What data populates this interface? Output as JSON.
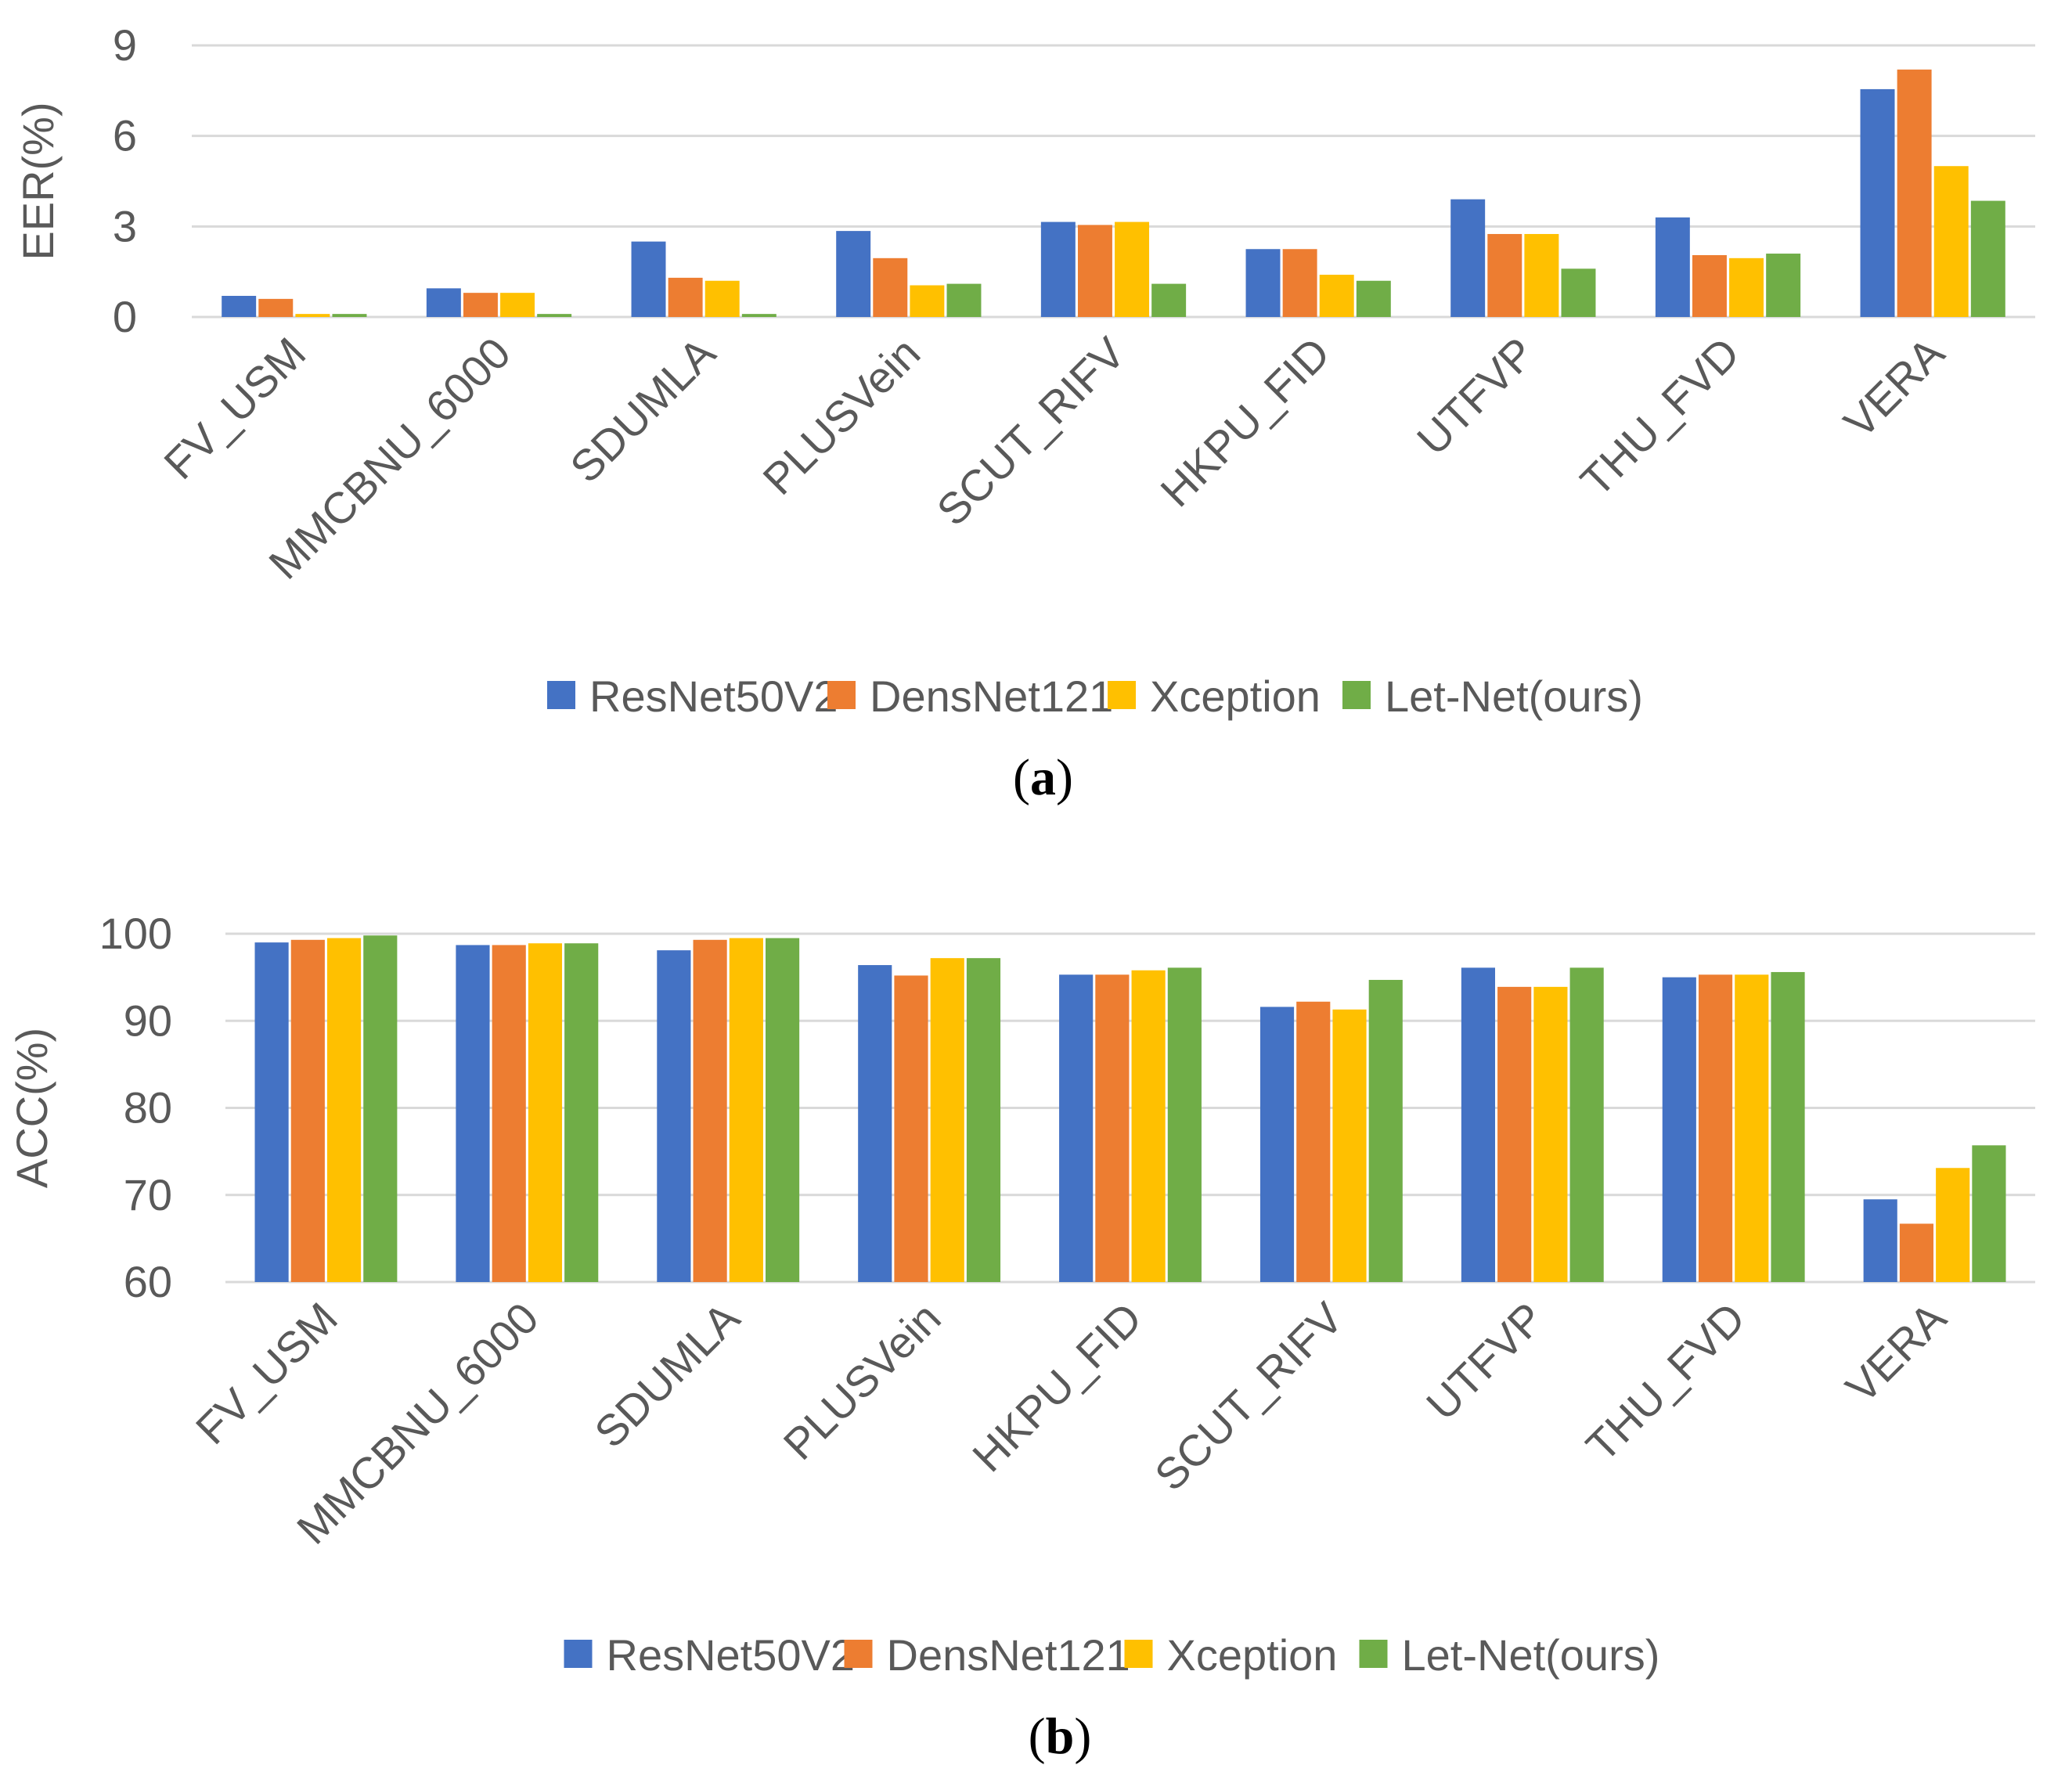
{
  "chart_data": [
    {
      "type": "bar",
      "id": "a",
      "caption_paren_open": "(",
      "caption_letter": "a",
      "caption_paren_close": ")",
      "ylabel": "EER(%)",
      "ylim": [
        0,
        9
      ],
      "yticks": [
        "0",
        "3",
        "6",
        "9"
      ],
      "categories": [
        "FV_USM",
        "MMCBNU_6000",
        "SDUMLA",
        "PLUSVein",
        "SCUT_RIFV",
        "HKPU_FID",
        "UTFVP",
        "THU_FVD",
        "VERA"
      ],
      "series": [
        {
          "name": "ResNet50V2",
          "values": [
            0.7,
            0.95,
            2.5,
            2.85,
            3.15,
            2.25,
            3.9,
            3.3,
            7.55
          ]
        },
        {
          "name": "DensNet121",
          "values": [
            0.6,
            0.8,
            1.3,
            1.95,
            3.05,
            2.25,
            2.75,
            2.05,
            8.2
          ]
        },
        {
          "name": "Xception",
          "values": [
            0.1,
            0.8,
            1.2,
            1.05,
            3.15,
            1.4,
            2.75,
            1.95,
            5.0
          ]
        },
        {
          "name": "Let-Net(ours)",
          "values": [
            0.1,
            0.1,
            0.1,
            1.1,
            1.1,
            1.2,
            1.6,
            2.1,
            3.85
          ]
        }
      ]
    },
    {
      "type": "bar",
      "id": "b",
      "caption_paren_open": "(",
      "caption_letter": "b",
      "caption_paren_close": ")",
      "ylabel": "ACC(%)",
      "ylim": [
        60,
        100
      ],
      "yticks": [
        "60",
        "70",
        "80",
        "90",
        "100"
      ],
      "categories": [
        "FV_USM",
        "MMCBNU_6000",
        "SDUMLA",
        "PLUSVein",
        "HKPU_FID",
        "SCUT_RIFV",
        "UTFVP",
        "THU_FVD",
        "VERA"
      ],
      "series": [
        {
          "name": "ResNet50V2",
          "values": [
            99.0,
            98.7,
            98.1,
            96.4,
            95.3,
            91.6,
            96.1,
            95.0,
            69.5
          ]
        },
        {
          "name": "DensNet121",
          "values": [
            99.3,
            98.7,
            99.3,
            95.2,
            95.3,
            92.2,
            93.9,
            95.3,
            66.7
          ]
        },
        {
          "name": "Xception",
          "values": [
            99.5,
            98.9,
            99.5,
            97.2,
            95.8,
            91.3,
            93.9,
            95.3,
            73.1
          ]
        },
        {
          "name": "Let-Net(ours)",
          "values": [
            99.8,
            98.9,
            99.5,
            97.2,
            96.1,
            94.7,
            96.1,
            95.6,
            75.7
          ]
        }
      ]
    }
  ],
  "colors": {
    "ResNet50V2": "#4472C4",
    "DensNet121": "#ED7D31",
    "Xception": "#FFC000",
    "Let-Net(ours)": "#70AD47",
    "grid": "#D9D9D9",
    "text": "#595959"
  }
}
